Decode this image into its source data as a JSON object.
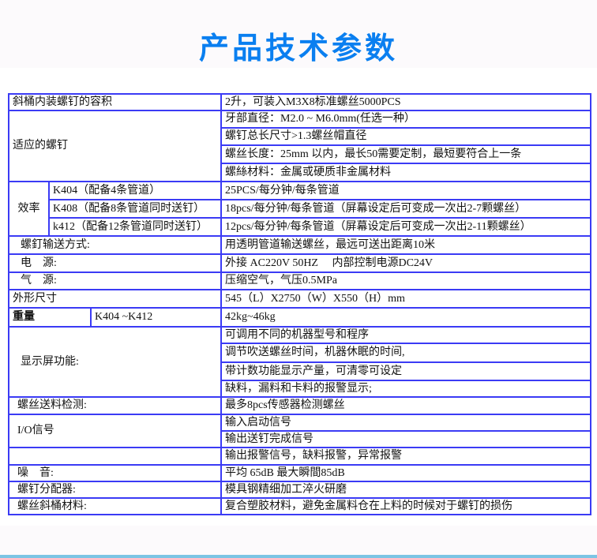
{
  "title": "产品技术参数",
  "colors": {
    "title": "#0a7ff0",
    "border": "#3b3bf5"
  },
  "rows": {
    "capacity": {
      "label": "斜桶内装螺钉的容积",
      "value": "2升，可装入M3X8标准螺丝5000PCS"
    },
    "screws": {
      "label": "适应的螺钉",
      "values": [
        "牙部直径：M2.0 ~ M6.0mm(任选一种）",
        "螺钉总长尺寸>1.3螺丝帽直径",
        "螺丝长度：25mm 以内，最长50需要定制，最短要符合上一条",
        "螺絲材料：金属或硬质非金属材料"
      ]
    },
    "efficiency": {
      "label": "效率",
      "items": [
        {
          "model": "K404（配备4条管道）",
          "value": "25PCS/每分钟/每条管道"
        },
        {
          "model": "K408（配备8条管道同时送钉）",
          "value": "18pcs/每分钟/每条管道（屏幕设定后可变成一次出2-7颗螺丝）"
        },
        {
          "model": "k412（配备12条管道同时送钉）",
          "value": "12pcs/每分钟/每条管道（屏幕设定后可变成一次出2-11颗螺丝）"
        }
      ]
    },
    "delivery": {
      "label": "螺釘输送方式:",
      "value": "用透明管道输送螺丝，最远可送出距离10米"
    },
    "power": {
      "label": "电　源:",
      "value": "外接 AC220V 50HZ　 内部控制电源DC24V"
    },
    "air": {
      "label": "气　源:",
      "value": "压缩空气，气压0.5MPa"
    },
    "dimensions": {
      "label": "外形尺寸",
      "value": "545（L）X2750（W）X550（H）mm"
    },
    "weight": {
      "label": "重量",
      "model": "K404 ~K412",
      "value": "42kg~46kg"
    },
    "display": {
      "label": "显示屏功能:",
      "values": [
        "可调用不同的机器型号和程序",
        "调节吹送螺丝时间，机器休眠的时间,",
        "带计数功能显示产量，可清零可设定",
        "缺料，漏料和卡料的报警显示;"
      ]
    },
    "detection": {
      "label": "螺丝送料检测:",
      "value": "最多8pcs传感器检测螺丝"
    },
    "io": {
      "label": "I/O信号",
      "values": [
        "输入启动信号",
        "输出送钉完成信号"
      ]
    },
    "alarm": {
      "label": "",
      "value": "输出报警信号，缺料报警，异常报警"
    },
    "noise": {
      "label": "噪　音:",
      "value": "平均 65dB 最大瞬間85dB"
    },
    "distributor": {
      "label": "螺钉分配器:",
      "value": "模具钢精细加工淬火研磨"
    },
    "hopper": {
      "label": "螺丝斜桶材料:",
      "value": "复合塑胶材料，避免金属料仓在上料的时候对于螺钉的损伤"
    }
  }
}
